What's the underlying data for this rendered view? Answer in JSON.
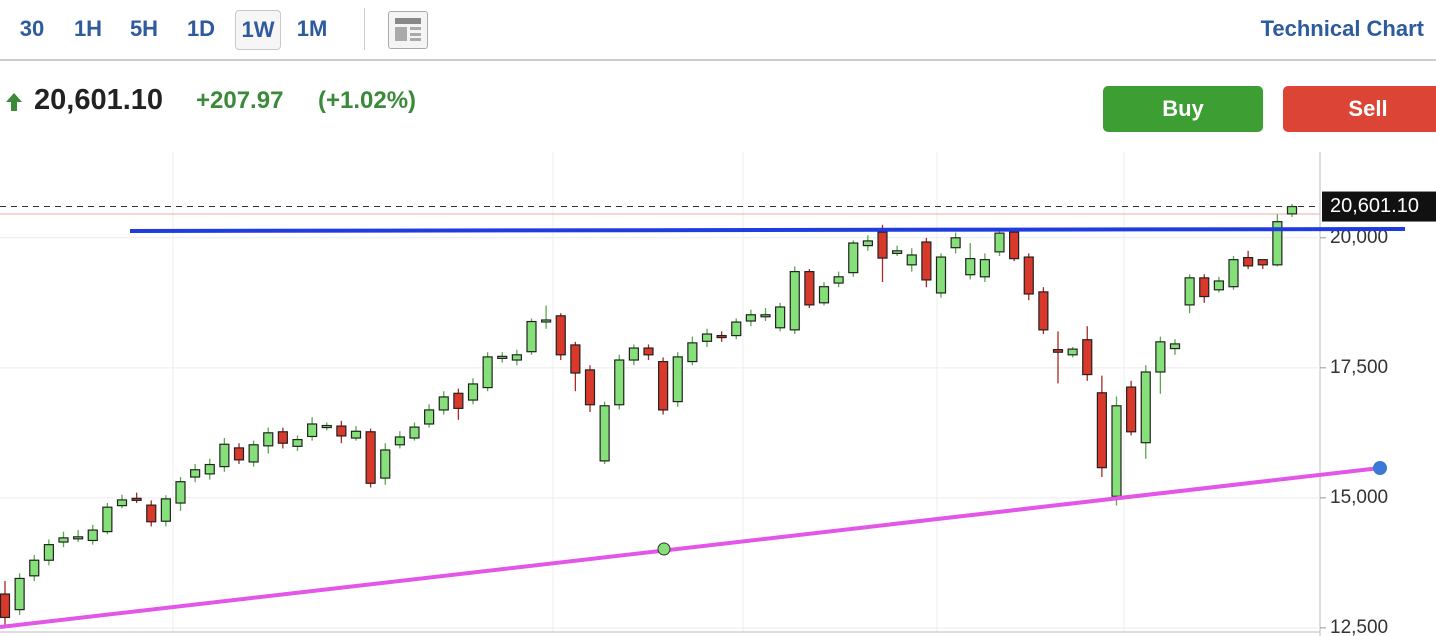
{
  "toolbar": {
    "intervals": [
      {
        "label": "30",
        "active": false
      },
      {
        "label": "1H",
        "active": false
      },
      {
        "label": "5H",
        "active": false
      },
      {
        "label": "1D",
        "active": false
      },
      {
        "label": "1W",
        "active": true
      },
      {
        "label": "1M",
        "active": false
      }
    ],
    "title": "Technical Chart"
  },
  "quote": {
    "price": "20,601.10",
    "change": "+207.97",
    "change_pct": "(+1.02%)"
  },
  "actions": {
    "buy": "Buy",
    "sell": "Sell"
  },
  "chart_data": {
    "type": "candlestick",
    "open": [
      13150,
      12850,
      13500,
      13800,
      14150,
      14230,
      14180,
      14350,
      14850,
      14990,
      14860,
      14550,
      14900,
      15400,
      15460,
      15600,
      15960,
      15690,
      16000,
      16270,
      15990,
      16180,
      16380,
      16380,
      16150,
      16270,
      15380,
      16020,
      16150,
      16420,
      16690,
      17010,
      16880,
      17120,
      17710,
      17650,
      17810,
      18400,
      18500,
      17940,
      17460,
      15710,
      16790,
      17650,
      17880,
      17620,
      16850,
      17620,
      18010,
      18120,
      18120,
      18400,
      18520,
      18270,
      18230,
      19350,
      18750,
      19130,
      19330,
      19850,
      20110,
      19700,
      19480,
      19920,
      18940,
      19810,
      19290,
      19250,
      19730,
      20110,
      19630,
      18960,
      17850,
      17750,
      18040,
      17020,
      15030,
      17130,
      16060,
      17420,
      17870,
      18710,
      19230,
      19000,
      19060,
      19620,
      19580,
      19480,
      20460
    ],
    "high": [
      13400,
      13550,
      13900,
      14200,
      14350,
      14380,
      14480,
      14900,
      15060,
      15100,
      14950,
      15050,
      15400,
      15650,
      15750,
      16150,
      16050,
      16100,
      16350,
      16350,
      16200,
      16550,
      16450,
      16480,
      16380,
      16330,
      16050,
      16280,
      16450,
      16800,
      17050,
      17100,
      17300,
      17800,
      17800,
      17850,
      18450,
      18700,
      18550,
      18000,
      17550,
      16850,
      17750,
      17950,
      17950,
      17700,
      17800,
      18100,
      18250,
      18200,
      18450,
      18620,
      18650,
      18750,
      19450,
      19400,
      19150,
      19350,
      19950,
      20050,
      20250,
      19850,
      19800,
      20000,
      19700,
      20100,
      19900,
      19700,
      20150,
      20150,
      19700,
      19050,
      18200,
      17900,
      18300,
      17350,
      16950,
      17250,
      17550,
      18100,
      18050,
      19300,
      19300,
      19250,
      19650,
      19750,
      19580,
      20450,
      20650
    ],
    "low": [
      12550,
      12750,
      13400,
      13700,
      14050,
      14150,
      14100,
      14300,
      14800,
      14900,
      14450,
      14450,
      14750,
      15300,
      15350,
      15500,
      15650,
      15600,
      15850,
      15950,
      15900,
      16100,
      16300,
      16050,
      16100,
      15200,
      15250,
      15950,
      16100,
      16350,
      16600,
      16500,
      16800,
      17050,
      17600,
      17550,
      17750,
      18250,
      17650,
      17050,
      16650,
      15650,
      16700,
      17550,
      17650,
      16600,
      16750,
      17550,
      17900,
      18000,
      18050,
      18300,
      18400,
      18200,
      18150,
      18650,
      18700,
      19050,
      19250,
      19750,
      19150,
      19650,
      19350,
      19050,
      18850,
      19700,
      19200,
      19150,
      19650,
      19550,
      18800,
      18150,
      17200,
      17700,
      17250,
      15400,
      14850,
      16200,
      15750,
      17000,
      17750,
      18550,
      18750,
      18950,
      19000,
      19400,
      19400,
      19450,
      20400
    ],
    "close": [
      12700,
      13450,
      13800,
      14100,
      14230,
      14250,
      14380,
      14820,
      14960,
      14980,
      14540,
      14980,
      15310,
      15540,
      15640,
      16030,
      15730,
      16020,
      16250,
      16050,
      16120,
      16420,
      16390,
      16190,
      16280,
      15280,
      15920,
      16170,
      16360,
      16690,
      16940,
      16720,
      17190,
      17710,
      17720,
      17750,
      18390,
      18420,
      17750,
      17400,
      16790,
      16770,
      17650,
      17880,
      17750,
      16690,
      17710,
      17980,
      18150,
      18110,
      18380,
      18520,
      18520,
      18670,
      19350,
      18710,
      19060,
      19250,
      19900,
      19940,
      19610,
      19750,
      19670,
      19190,
      19630,
      20000,
      19600,
      19580,
      20090,
      19600,
      18920,
      18230,
      17800,
      17860,
      17370,
      15580,
      16770,
      16270,
      17420,
      18000,
      17960,
      19230,
      18870,
      19170,
      19580,
      19460,
      19480,
      20310,
      20601.1
    ],
    "up_color": "#86e07a",
    "down_color": "#d8392b",
    "ylim": [
      12420,
      21650
    ],
    "yticks": [
      {
        "value": 12500,
        "label": "12,500"
      },
      {
        "value": 15000,
        "label": "15,000"
      },
      {
        "value": 17500,
        "label": "17,500"
      },
      {
        "value": 20000,
        "label": "20,000"
      }
    ],
    "grid": true,
    "last_price": {
      "value": 20601.1,
      "label": "20,601.10"
    }
  }
}
